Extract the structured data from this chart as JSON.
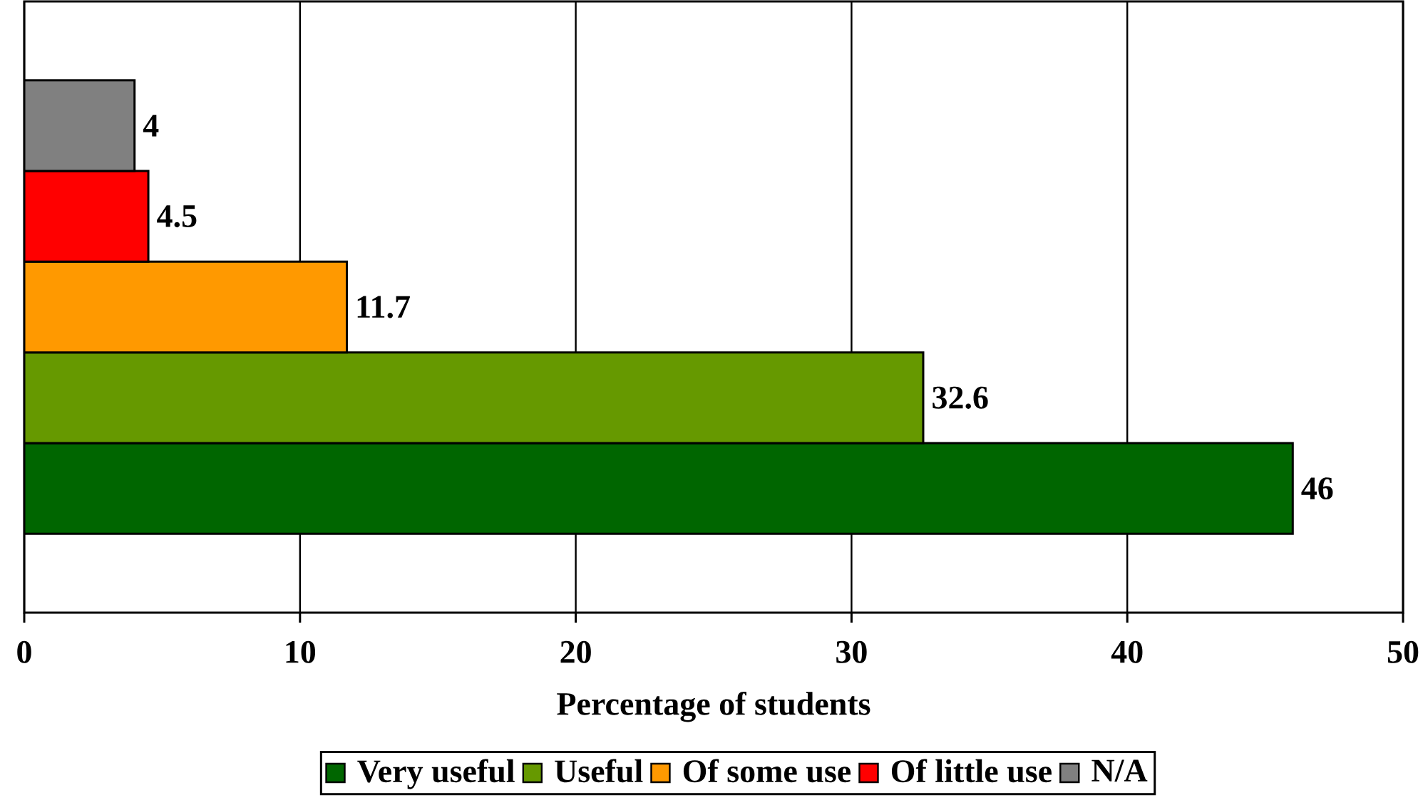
{
  "chart_data": {
    "type": "bar",
    "orientation": "horizontal",
    "xlabel": "Percentage of students",
    "categories": [
      null
    ],
    "series": [
      {
        "name": "Very useful",
        "color": "#006600",
        "values": [
          46
        ]
      },
      {
        "name": "Useful",
        "color": "#669900",
        "values": [
          32.6
        ]
      },
      {
        "name": "Of some use",
        "color": "#ff9900",
        "values": [
          11.7
        ]
      },
      {
        "name": "Of little use",
        "color": "#ff0000",
        "values": [
          4.5
        ]
      },
      {
        "name": "N/A",
        "color": "#808080",
        "values": [
          4
        ]
      }
    ],
    "xlim": [
      0,
      50
    ],
    "xticks": [
      0,
      10,
      20,
      30,
      40,
      50
    ],
    "grid": "x",
    "legend": "bottom",
    "data_labels": true
  }
}
